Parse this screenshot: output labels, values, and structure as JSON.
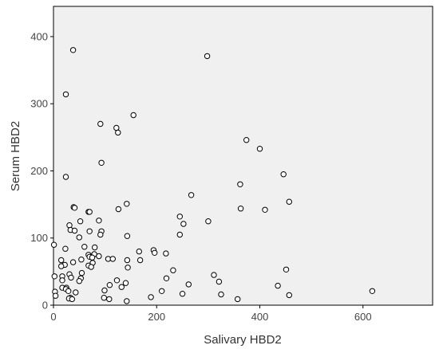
{
  "chart_data": {
    "type": "scatter",
    "title": "",
    "xlabel": "Salivary HBD2",
    "ylabel": "Serum HBD2",
    "xlim": [
      0,
      735
    ],
    "ylim": [
      0,
      445
    ],
    "xticks": [
      0,
      200,
      400,
      600
    ],
    "yticks": [
      0,
      100,
      200,
      300,
      400
    ],
    "grid": false,
    "legend": "none",
    "colors": {
      "plot_background": "#f0f0f0",
      "frame": "#000000",
      "marker_stroke": "#000000",
      "marker_fill": "#ffffff"
    },
    "points": [
      {
        "x": 38,
        "y": 380
      },
      {
        "x": 298,
        "y": 371
      },
      {
        "x": 24,
        "y": 314
      },
      {
        "x": 155,
        "y": 283
      },
      {
        "x": 91,
        "y": 270
      },
      {
        "x": 122,
        "y": 264
      },
      {
        "x": 125,
        "y": 257
      },
      {
        "x": 374,
        "y": 246
      },
      {
        "x": 400,
        "y": 233
      },
      {
        "x": 93,
        "y": 212
      },
      {
        "x": 446,
        "y": 195
      },
      {
        "x": 24,
        "y": 191
      },
      {
        "x": 362,
        "y": 180
      },
      {
        "x": 267,
        "y": 164
      },
      {
        "x": 457,
        "y": 154
      },
      {
        "x": 142,
        "y": 151
      },
      {
        "x": 39,
        "y": 146
      },
      {
        "x": 41,
        "y": 145
      },
      {
        "x": 363,
        "y": 144
      },
      {
        "x": 126,
        "y": 143
      },
      {
        "x": 410,
        "y": 142
      },
      {
        "x": 68,
        "y": 139
      },
      {
        "x": 70,
        "y": 139
      },
      {
        "x": 245,
        "y": 132
      },
      {
        "x": 88,
        "y": 126
      },
      {
        "x": 52,
        "y": 125
      },
      {
        "x": 300,
        "y": 125
      },
      {
        "x": 252,
        "y": 121
      },
      {
        "x": 31,
        "y": 119
      },
      {
        "x": 33,
        "y": 112
      },
      {
        "x": 41,
        "y": 111
      },
      {
        "x": 93,
        "y": 110
      },
      {
        "x": 70,
        "y": 110
      },
      {
        "x": 91,
        "y": 105
      },
      {
        "x": 245,
        "y": 105
      },
      {
        "x": 143,
        "y": 103
      },
      {
        "x": 50,
        "y": 101
      },
      {
        "x": 1,
        "y": 90
      },
      {
        "x": 60,
        "y": 87
      },
      {
        "x": 80,
        "y": 86
      },
      {
        "x": 23,
        "y": 84
      },
      {
        "x": 194,
        "y": 82
      },
      {
        "x": 166,
        "y": 80
      },
      {
        "x": 196,
        "y": 78
      },
      {
        "x": 218,
        "y": 77
      },
      {
        "x": 79,
        "y": 76
      },
      {
        "x": 68,
        "y": 75
      },
      {
        "x": 88,
        "y": 73
      },
      {
        "x": 70,
        "y": 72
      },
      {
        "x": 75,
        "y": 71
      },
      {
        "x": 106,
        "y": 69
      },
      {
        "x": 115,
        "y": 69
      },
      {
        "x": 54,
        "y": 68
      },
      {
        "x": 168,
        "y": 67
      },
      {
        "x": 143,
        "y": 67
      },
      {
        "x": 15,
        "y": 67
      },
      {
        "x": 38,
        "y": 64
      },
      {
        "x": 76,
        "y": 63
      },
      {
        "x": 22,
        "y": 60
      },
      {
        "x": 68,
        "y": 59
      },
      {
        "x": 15,
        "y": 58
      },
      {
        "x": 73,
        "y": 57
      },
      {
        "x": 144,
        "y": 56
      },
      {
        "x": 451,
        "y": 53
      },
      {
        "x": 232,
        "y": 52
      },
      {
        "x": 55,
        "y": 48
      },
      {
        "x": 31,
        "y": 46
      },
      {
        "x": 311,
        "y": 45
      },
      {
        "x": 2,
        "y": 43
      },
      {
        "x": 17,
        "y": 43
      },
      {
        "x": 34,
        "y": 41
      },
      {
        "x": 53,
        "y": 40
      },
      {
        "x": 219,
        "y": 40
      },
      {
        "x": 17,
        "y": 37
      },
      {
        "x": 123,
        "y": 37
      },
      {
        "x": 50,
        "y": 36
      },
      {
        "x": 321,
        "y": 35
      },
      {
        "x": 140,
        "y": 33
      },
      {
        "x": 262,
        "y": 31
      },
      {
        "x": 109,
        "y": 30
      },
      {
        "x": 435,
        "y": 29
      },
      {
        "x": 132,
        "y": 27
      },
      {
        "x": 17,
        "y": 26
      },
      {
        "x": 25,
        "y": 26
      },
      {
        "x": 24,
        "y": 24
      },
      {
        "x": 99,
        "y": 22
      },
      {
        "x": 29,
        "y": 21
      },
      {
        "x": 210,
        "y": 21
      },
      {
        "x": 618,
        "y": 21
      },
      {
        "x": 3,
        "y": 20
      },
      {
        "x": 43,
        "y": 19
      },
      {
        "x": 250,
        "y": 17
      },
      {
        "x": 325,
        "y": 16
      },
      {
        "x": 457,
        "y": 15
      },
      {
        "x": 4,
        "y": 14
      },
      {
        "x": 189,
        "y": 12
      },
      {
        "x": 33,
        "y": 11
      },
      {
        "x": 98,
        "y": 11
      },
      {
        "x": 30,
        "y": 10
      },
      {
        "x": 36,
        "y": 9
      },
      {
        "x": 357,
        "y": 9
      },
      {
        "x": 108,
        "y": 9
      },
      {
        "x": 142,
        "y": 6
      }
    ]
  }
}
